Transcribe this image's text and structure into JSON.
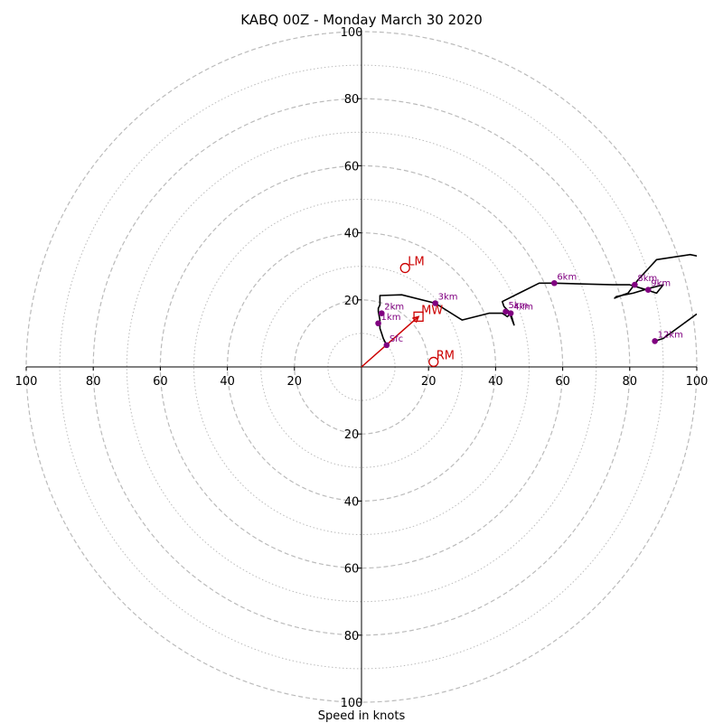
{
  "chart_data": {
    "type": "hodograph",
    "title": "KABQ 00Z - Monday March 30 2020",
    "xlabel": "Speed in knots",
    "ylabel": "",
    "range": [
      -100,
      100
    ],
    "ring_major_step": 20,
    "ring_minor_step": 10,
    "tick_labels": [
      "100",
      "80",
      "60",
      "40",
      "20",
      "20",
      "40",
      "60",
      "80",
      "100"
    ],
    "tick_values": [
      -100,
      -80,
      -60,
      -40,
      -20,
      20,
      40,
      60,
      80,
      100
    ],
    "colors": {
      "trace": "#000000",
      "height_marker": "#800080",
      "motion": "#cc0000",
      "ring": "#bbbbbb"
    },
    "trace": [
      [
        7.5,
        6.5
      ],
      [
        6.5,
        8.5
      ],
      [
        6,
        10
      ],
      [
        5.5,
        11.5
      ],
      [
        5.5,
        13
      ],
      [
        5.5,
        14
      ],
      [
        5,
        16.5
      ],
      [
        5,
        17.5
      ],
      [
        5.5,
        18.5
      ],
      [
        5.5,
        21.3
      ],
      [
        12,
        21.5
      ],
      [
        22,
        19
      ],
      [
        30,
        14
      ],
      [
        38,
        16
      ],
      [
        42,
        16
      ],
      [
        43.5,
        15
      ],
      [
        44.5,
        16
      ],
      [
        45.5,
        12.5
      ],
      [
        44,
        16.5
      ],
      [
        42.5,
        18
      ],
      [
        42,
        19.5
      ],
      [
        47,
        22
      ],
      [
        53,
        25
      ],
      [
        57.5,
        25
      ],
      [
        75,
        24.5
      ],
      [
        80,
        24.5
      ],
      [
        85,
        23
      ],
      [
        88,
        22
      ],
      [
        90,
        24.5
      ],
      [
        86,
        23.5
      ],
      [
        81,
        22
      ],
      [
        76,
        21
      ],
      [
        75.5,
        20.5
      ],
      [
        78,
        21.5
      ],
      [
        79.5,
        22
      ],
      [
        82.5,
        26
      ],
      [
        88,
        32
      ],
      [
        98,
        33.5
      ],
      [
        103,
        32.5
      ]
    ],
    "trace_extra": [
      [
        87.5,
        7.7
      ],
      [
        90,
        8.5
      ],
      [
        100,
        15.8
      ]
    ],
    "height_points": [
      {
        "label": "Sfc",
        "u": 7.5,
        "v": 6.5
      },
      {
        "label": "1km",
        "u": 5,
        "v": 13
      },
      {
        "label": "2km",
        "u": 6,
        "v": 16
      },
      {
        "label": "3km",
        "u": 22,
        "v": 19
      },
      {
        "label": "4km",
        "u": 44.5,
        "v": 16
      },
      {
        "label": "5km",
        "u": 43,
        "v": 16.5
      },
      {
        "label": "6km",
        "u": 57.5,
        "v": 25
      },
      {
        "label": "8km",
        "u": 81.5,
        "v": 24.5
      },
      {
        "label": "9km",
        "u": 85.5,
        "v": 23
      },
      {
        "label": "12km",
        "u": 87.5,
        "v": 7.7
      }
    ],
    "storm_motion": [
      {
        "label": "LM",
        "u": 13,
        "v": 29.5,
        "marker": "circle"
      },
      {
        "label": "MW",
        "u": 17,
        "v": 15,
        "marker": "square"
      },
      {
        "label": "RM",
        "u": 21.5,
        "v": 1.5,
        "marker": "circle"
      }
    ],
    "arrow": {
      "u": 17,
      "v": 15
    }
  }
}
